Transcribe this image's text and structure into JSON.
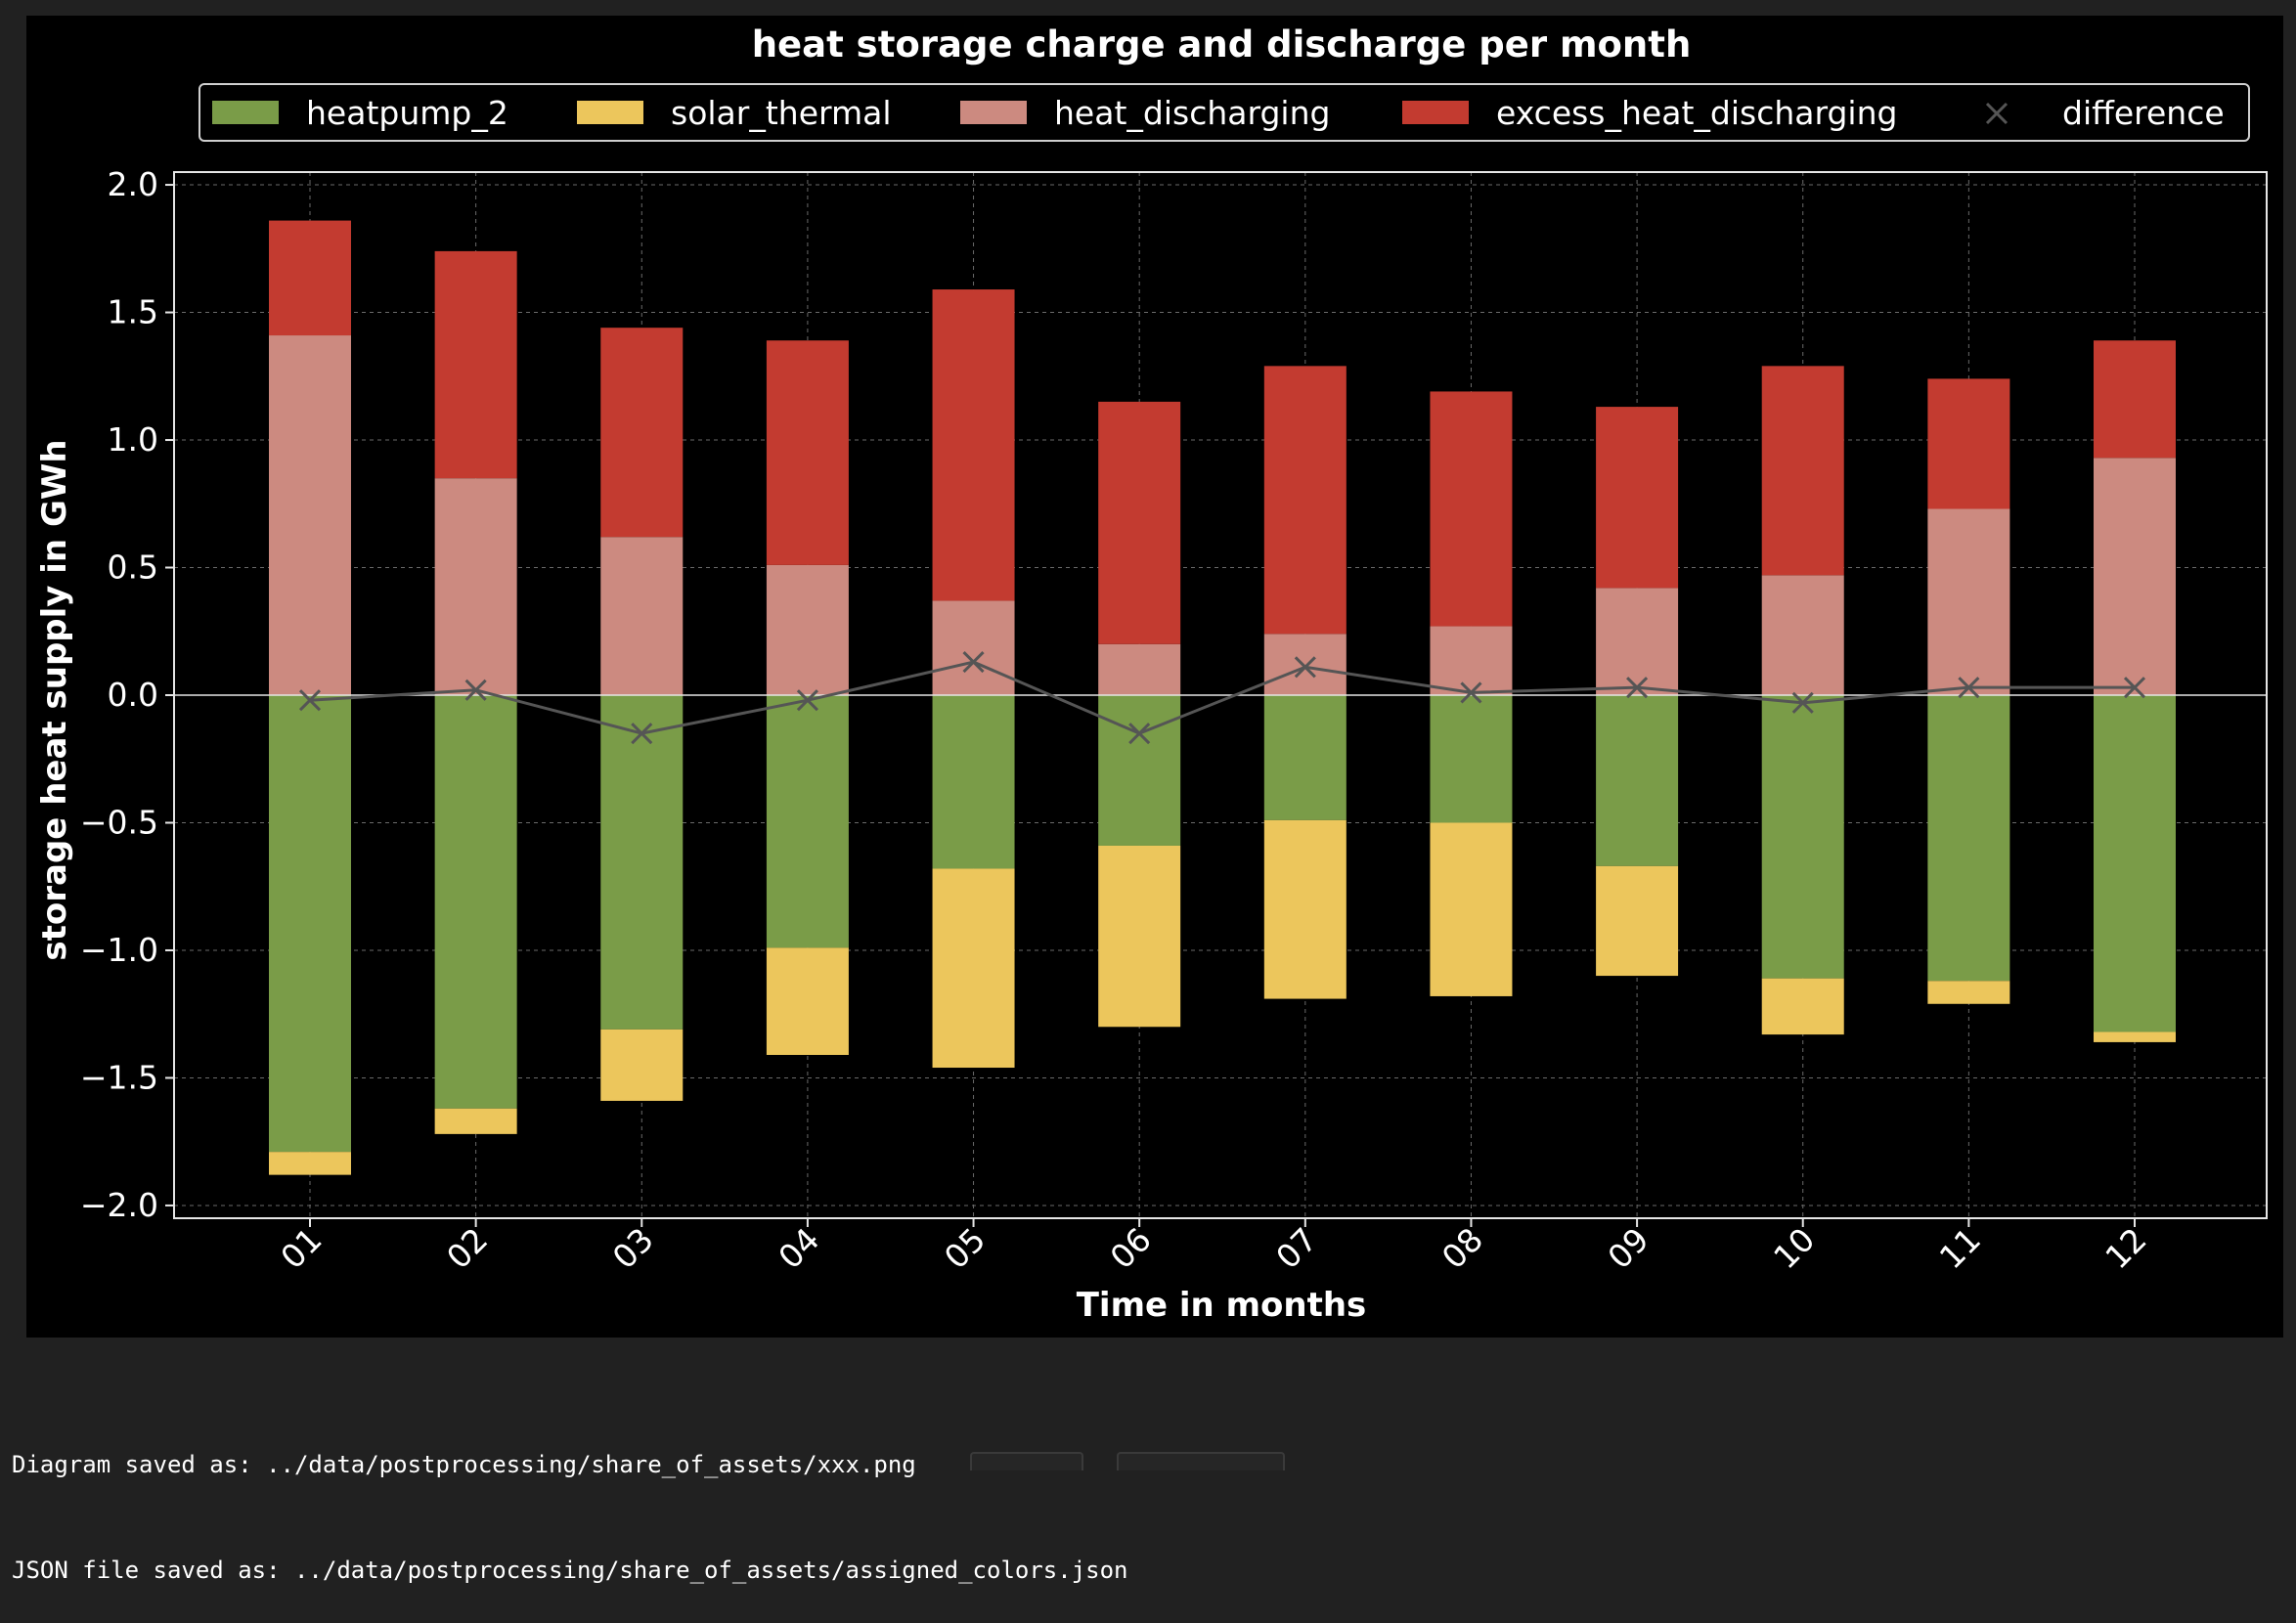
{
  "chart_data": {
    "type": "bar",
    "stacked": true,
    "title": "heat storage charge and discharge per month",
    "xlabel": "Time in months",
    "ylabel": "storage heat supply in GWh",
    "ylim": [
      -2.05,
      2.05
    ],
    "yticks": [
      -2.0,
      -1.5,
      -1.0,
      -0.5,
      0.0,
      0.5,
      1.0,
      1.5,
      2.0
    ],
    "ytick_labels": [
      "−2.0",
      "−1.5",
      "−1.0",
      "−0.5",
      "0.0",
      "0.5",
      "1.0",
      "1.5",
      "2.0"
    ],
    "grid": true,
    "legend_position": "top",
    "categories": [
      "01",
      "02",
      "03",
      "04",
      "05",
      "06",
      "07",
      "08",
      "09",
      "10",
      "11",
      "12"
    ],
    "series": [
      {
        "name": "heatpump_2",
        "color": "#7a9c48",
        "values": [
          -1.79,
          -1.62,
          -1.31,
          -0.99,
          -0.68,
          -0.59,
          -0.49,
          -0.5,
          -0.67,
          -1.11,
          -1.12,
          -1.32
        ]
      },
      {
        "name": "solar_thermal",
        "color": "#ecc65c",
        "values": [
          -0.09,
          -0.1,
          -0.28,
          -0.42,
          -0.78,
          -0.71,
          -0.7,
          -0.68,
          -0.43,
          -0.22,
          -0.09,
          -0.04
        ]
      },
      {
        "name": "heat_discharging",
        "color": "#cc8a80",
        "values": [
          1.41,
          0.85,
          0.62,
          0.51,
          0.37,
          0.2,
          0.24,
          0.27,
          0.42,
          0.47,
          0.73,
          0.93
        ]
      },
      {
        "name": "excess_heat_discharging",
        "color": "#c33b30",
        "values": [
          0.45,
          0.89,
          0.82,
          0.88,
          1.22,
          0.95,
          1.05,
          0.92,
          0.71,
          0.82,
          0.51,
          0.46
        ]
      }
    ],
    "line_series": {
      "name": "difference",
      "color": "#555555",
      "marker": "x",
      "values": [
        -0.02,
        0.02,
        -0.15,
        -0.02,
        0.13,
        -0.15,
        0.11,
        0.01,
        0.03,
        -0.03,
        0.03,
        0.03
      ]
    }
  },
  "output": {
    "lines": [
      "Diagram saved as: ../data/postprocessing/share_of_assets/xxx.png",
      "JSON file saved as: ../data/postprocessing/share_of_assets/assigned_colors.json"
    ]
  }
}
